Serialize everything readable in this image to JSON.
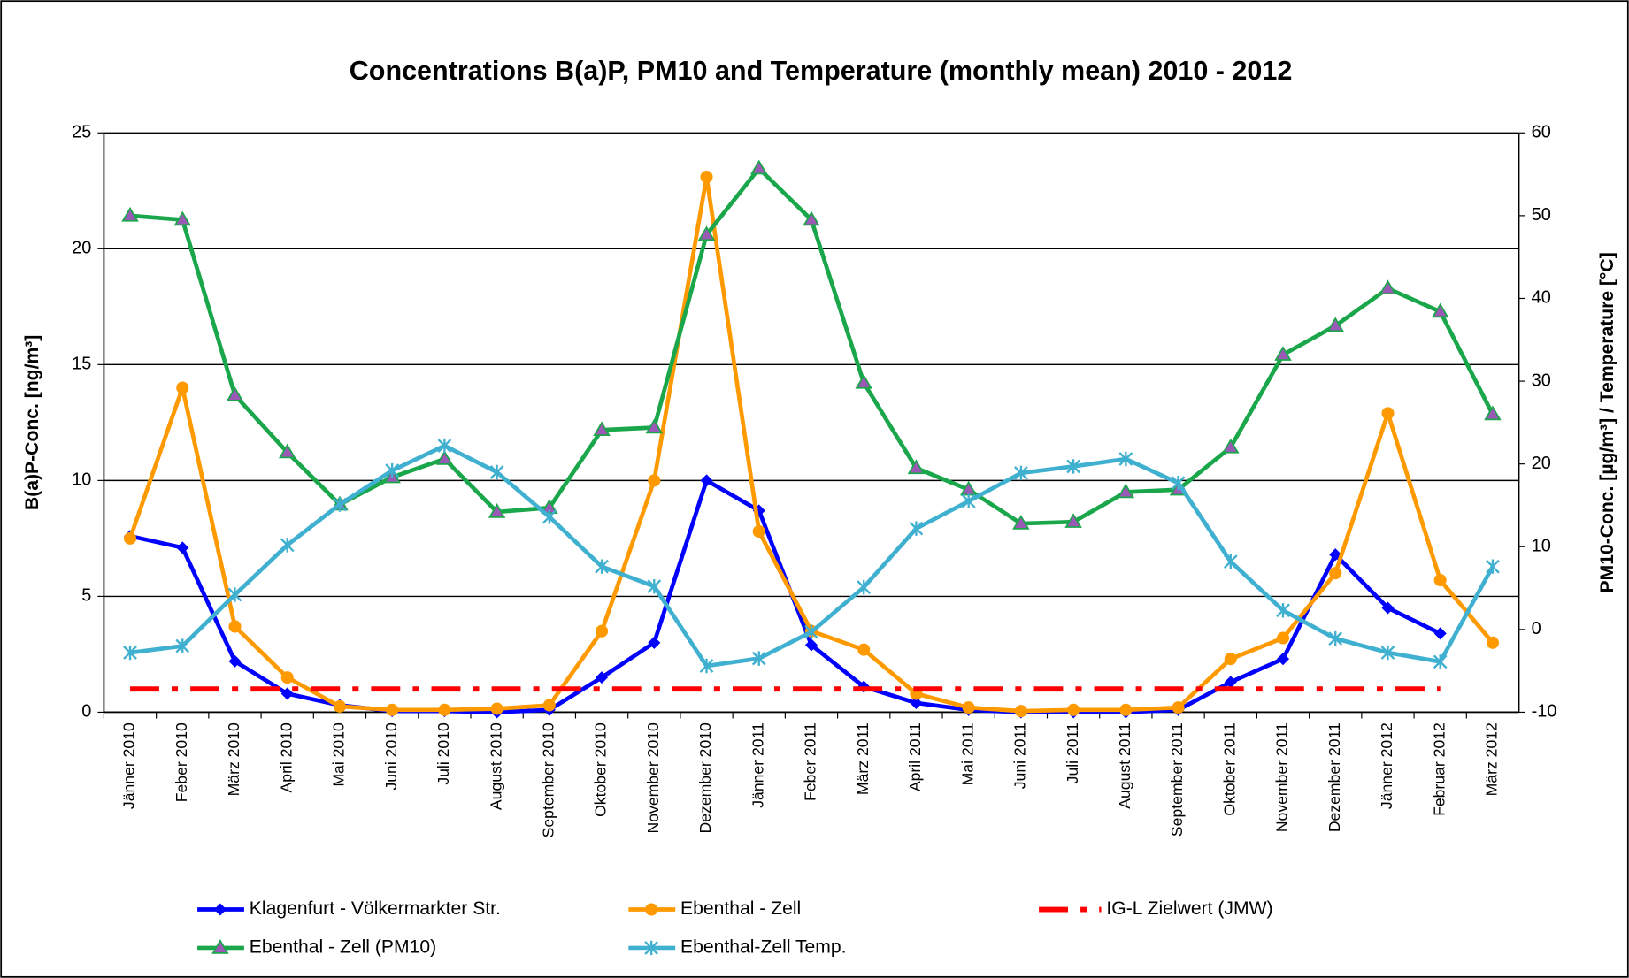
{
  "chart_data": {
    "type": "line",
    "title": "Concentrations B(a)P, PM10 and Temperature (monthly mean) 2010 - 2012",
    "y_label": "B(a)P-Conc. [ng/m³]",
    "y2_label": "PM10-Conc. [µg/m³]  /  Temperature [°C]",
    "categories": [
      "Jänner 2010",
      "Feber  2010",
      "März 2010",
      "April 2010",
      "Mai 2010",
      "Juni 2010",
      "Juli 2010",
      "August 2010",
      "September 2010",
      "Oktober 2010",
      "November 2010",
      "Dezember 2010",
      "Jänner 2011",
      "Feber 2011",
      "März 2011",
      "April 2011",
      "Mai 2011",
      "Juni 2011",
      "Juli 2011",
      "August 2011",
      "September 2011",
      "Oktober 2011",
      "November 2011",
      "Dezember 2011",
      "Jänner 2012",
      "Februar 2012",
      "März 2012"
    ],
    "ylim": [
      0,
      25
    ],
    "yticks": [
      0,
      5,
      10,
      15,
      20,
      25
    ],
    "y2lim": [
      -10,
      60
    ],
    "y2ticks": [
      -10,
      0,
      10,
      20,
      30,
      40,
      50,
      60
    ],
    "grid": true,
    "series": [
      {
        "name": "Klagenfurt - Völkermarkter Str.",
        "color": "#0000ff",
        "marker": "diamond",
        "values": [
          7.6,
          7.1,
          2.2,
          0.8,
          0.3,
          0.05,
          0.05,
          0.0,
          0.1,
          1.5,
          3.0,
          10.0,
          8.7,
          2.9,
          1.1,
          0.4,
          0.1,
          0.0,
          0.0,
          0.0,
          0.1,
          1.3,
          2.3,
          6.8,
          4.5,
          3.4,
          null
        ]
      },
      {
        "name": "Ebenthal - Zell",
        "color": "#ff9900",
        "marker": "circle",
        "values": [
          7.5,
          14.0,
          3.7,
          1.5,
          0.25,
          0.1,
          0.1,
          0.15,
          0.3,
          3.5,
          10.0,
          23.1,
          7.8,
          3.5,
          2.7,
          0.8,
          0.2,
          0.05,
          0.1,
          0.1,
          0.2,
          2.3,
          3.2,
          6.0,
          12.9,
          5.7,
          3.0
        ]
      },
      {
        "name": "IG-L Zielwert (JMW)",
        "color": "#ff0000",
        "marker": "none",
        "style": "dash-dot",
        "values": [
          1,
          1,
          1,
          1,
          1,
          1,
          1,
          1,
          1,
          1,
          1,
          1,
          1,
          1,
          1,
          1,
          1,
          1,
          1,
          1,
          1,
          1,
          1,
          1,
          1,
          1,
          null
        ]
      },
      {
        "name": "Ebenthal - Zell (PM10)",
        "color": "#1aa64a",
        "marker": "triangle",
        "axis": "y2",
        "values": [
          50.0,
          49.5,
          28.3,
          21.4,
          15.1,
          18.4,
          20.6,
          14.2,
          14.7,
          24.1,
          24.4,
          47.7,
          55.7,
          49.5,
          29.8,
          19.5,
          16.9,
          12.8,
          13.0,
          16.6,
          16.9,
          22.0,
          33.2,
          36.7,
          41.2,
          38.4,
          26.0
        ]
      },
      {
        "name": "Ebenthal-Zell Temp.",
        "color": "#40b0d0",
        "marker": "star",
        "axis": "y2",
        "values": [
          -2.8,
          -2.0,
          4.2,
          10.2,
          15.1,
          19.2,
          22.2,
          19.0,
          13.6,
          7.6,
          5.2,
          -4.4,
          -3.5,
          -0.3,
          5.1,
          12.2,
          15.5,
          18.9,
          19.7,
          20.6,
          17.7,
          8.2,
          2.3,
          -1.1,
          -2.8,
          -3.9,
          7.6
        ]
      }
    ]
  }
}
